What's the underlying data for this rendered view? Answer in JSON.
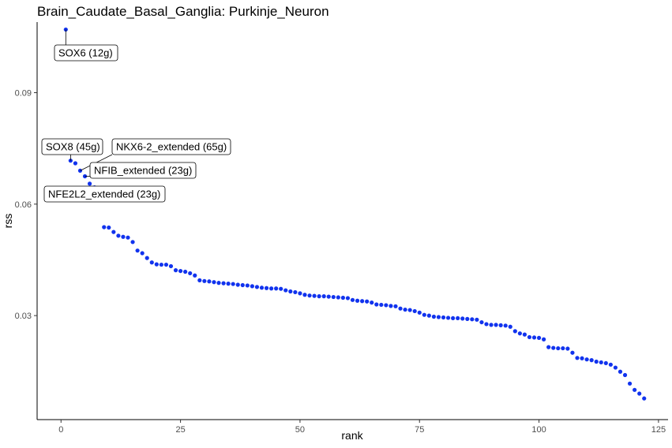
{
  "chart_data": {
    "type": "scatter",
    "title": "Brain_Caudate_Basal_Ganglia: Purkinje_Neuron",
    "xlabel": "rank",
    "ylabel": "rss",
    "xlim": [
      -5,
      127
    ],
    "ylim": [
      0.002,
      0.109
    ],
    "xticks": [
      0,
      25,
      50,
      75,
      100,
      125
    ],
    "yticks": [
      0.03,
      0.06,
      0.09
    ],
    "ytick_labels": [
      "0.03",
      "0.06",
      "0.09"
    ],
    "grid": false,
    "point_color": "#1133ee",
    "x": [
      1,
      2,
      3,
      4,
      5,
      6,
      7,
      8,
      9,
      10,
      11,
      12,
      13,
      14,
      15,
      16,
      17,
      18,
      19,
      20,
      21,
      22,
      23,
      24,
      25,
      26,
      27,
      28,
      29,
      30,
      31,
      32,
      33,
      34,
      35,
      36,
      37,
      38,
      39,
      40,
      41,
      42,
      43,
      44,
      45,
      46,
      47,
      48,
      49,
      50,
      51,
      52,
      53,
      54,
      55,
      56,
      57,
      58,
      59,
      60,
      61,
      62,
      63,
      64,
      65,
      66,
      67,
      68,
      69,
      70,
      71,
      72,
      73,
      74,
      75,
      76,
      77,
      78,
      79,
      80,
      81,
      82,
      83,
      84,
      85,
      86,
      87,
      88,
      89,
      90,
      91,
      92,
      93,
      94,
      95,
      96,
      97,
      98,
      99,
      100,
      101,
      102,
      103,
      104,
      105,
      106,
      107,
      108,
      109,
      110,
      111,
      112,
      113,
      114,
      115,
      116,
      117,
      118,
      119,
      120,
      121,
      122
    ],
    "y": [
      0.107,
      0.0717,
      0.071,
      0.069,
      0.0675,
      0.0655,
      0.0645,
      0.0635,
      0.0538,
      0.0537,
      0.0525,
      0.0515,
      0.0512,
      0.051,
      0.0498,
      0.0475,
      0.0468,
      0.0455,
      0.0443,
      0.0438,
      0.0437,
      0.0437,
      0.0433,
      0.0422,
      0.042,
      0.0418,
      0.0414,
      0.0408,
      0.0395,
      0.0393,
      0.0392,
      0.039,
      0.0388,
      0.0387,
      0.0386,
      0.0385,
      0.0383,
      0.0382,
      0.0381,
      0.0379,
      0.0377,
      0.0375,
      0.0374,
      0.0373,
      0.0373,
      0.0372,
      0.0368,
      0.0365,
      0.0363,
      0.036,
      0.0356,
      0.0354,
      0.0353,
      0.0352,
      0.0352,
      0.0351,
      0.035,
      0.0349,
      0.0348,
      0.0347,
      0.0342,
      0.034,
      0.0339,
      0.0338,
      0.0335,
      0.033,
      0.0329,
      0.0328,
      0.0326,
      0.0325,
      0.0319,
      0.0316,
      0.0315,
      0.0312,
      0.0308,
      0.0302,
      0.03,
      0.0297,
      0.0296,
      0.0295,
      0.0294,
      0.0293,
      0.0293,
      0.0292,
      0.0291,
      0.029,
      0.0289,
      0.0282,
      0.0277,
      0.0275,
      0.0275,
      0.0274,
      0.0273,
      0.027,
      0.0258,
      0.0252,
      0.0249,
      0.0242,
      0.0241,
      0.024,
      0.0236,
      0.0215,
      0.0213,
      0.0212,
      0.0212,
      0.0211,
      0.02,
      0.0186,
      0.0185,
      0.0182,
      0.018,
      0.0176,
      0.0174,
      0.0172,
      0.0168,
      0.016,
      0.0149,
      0.014,
      0.0117,
      0.01,
      0.009,
      0.0077
    ],
    "annotations": [
      {
        "text": "SOX6 (12g)",
        "rank": 1
      },
      {
        "text": "SOX8 (45g)",
        "rank": 2
      },
      {
        "text": "NKX6-2_extended (65g)",
        "rank": 4
      },
      {
        "text": "NFIB_extended (23g)",
        "rank": 5
      },
      {
        "text": "NFE2L2_extended (23g)",
        "rank": 6
      }
    ]
  }
}
